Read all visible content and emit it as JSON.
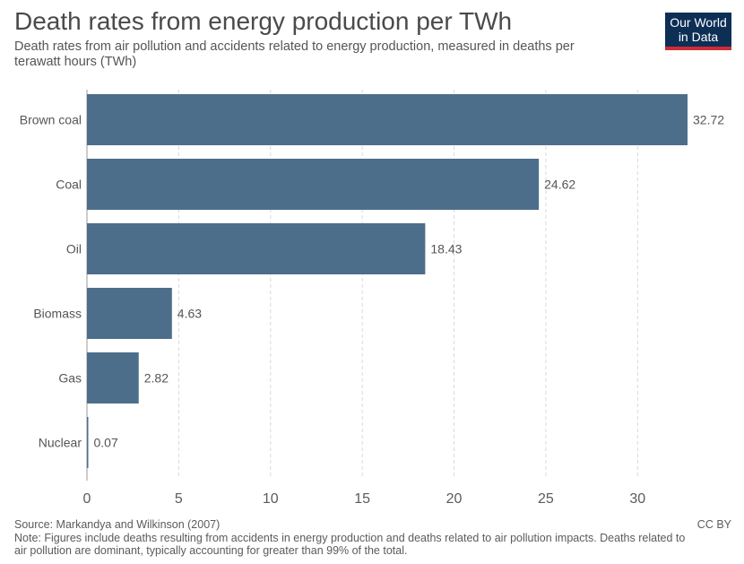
{
  "header": {
    "title": "Death rates from energy production per TWh",
    "subtitle": "Death rates from air pollution and accidents related to energy production, measured in deaths per terawatt hours (TWh)"
  },
  "logo": {
    "line1": "Our World",
    "line2": "in Data"
  },
  "footer": {
    "source": "Source: Markandya and Wilkinson (2007)",
    "note": "Note: Figures include deaths resulting from accidents in energy production and deaths related to air pollution impacts. Deaths related to air pollution are dominant, typically accounting for greater than 99% of the total.",
    "license": "CC BY"
  },
  "colors": {
    "bar": "#4d6e8b",
    "grid": "#d9d9d9",
    "axis": "#999999",
    "logo_bg": "#0d2f56",
    "logo_accent": "#ce2b37"
  },
  "chart_data": {
    "type": "bar",
    "orientation": "horizontal",
    "title": "Death rates from energy production per TWh",
    "categories": [
      "Brown coal",
      "Coal",
      "Oil",
      "Biomass",
      "Gas",
      "Nuclear"
    ],
    "values": [
      32.72,
      24.62,
      18.43,
      4.63,
      2.82,
      0.07
    ],
    "value_labels": [
      "32.72",
      "24.62",
      "18.43",
      "4.63",
      "2.82",
      "0.07"
    ],
    "xlim": [
      0,
      32.72
    ],
    "xticks": [
      0,
      5,
      10,
      15,
      20,
      25,
      30
    ],
    "xlabel": "",
    "ylabel": "",
    "grid": "vertical-dashed"
  }
}
